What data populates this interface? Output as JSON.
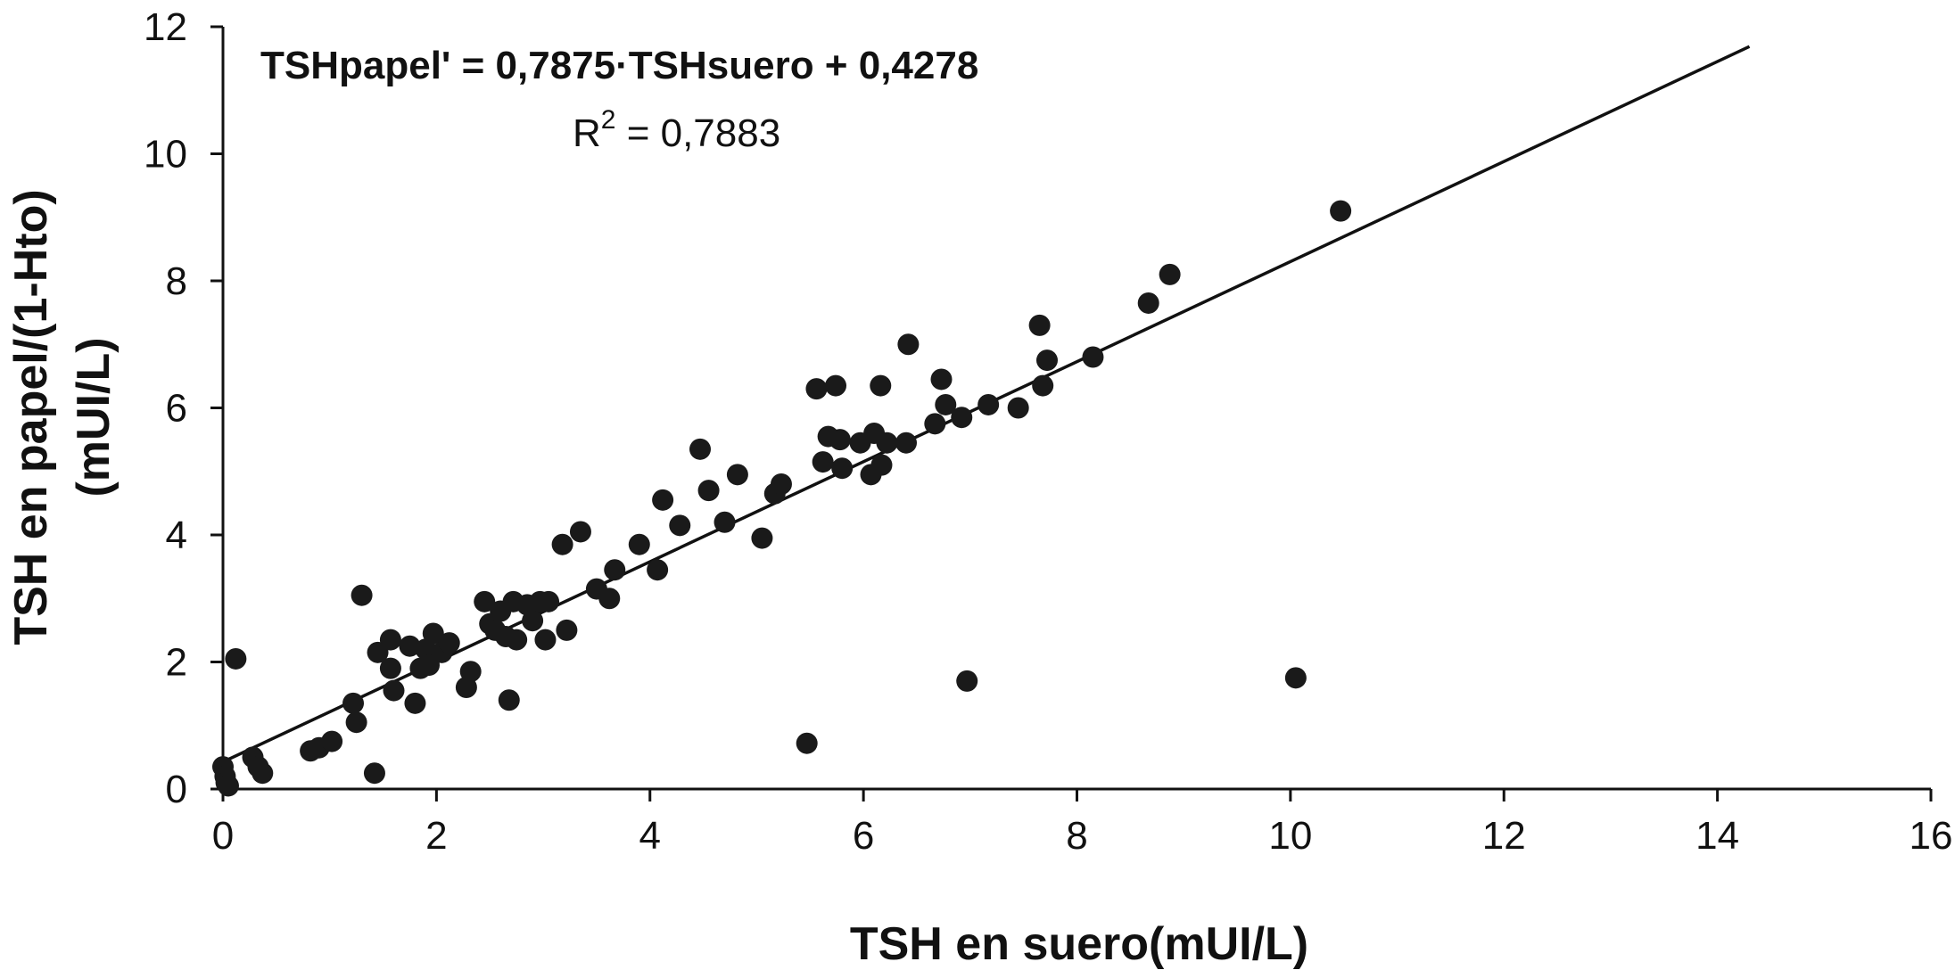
{
  "chart_data": {
    "type": "scatter",
    "xlabel": "TSH en suero(mUI/L)",
    "ylabel_lines": [
      "TSH en papel/(1-Hto)",
      "(mUI/L)"
    ],
    "xlim": [
      0,
      16
    ],
    "ylim": [
      0,
      12
    ],
    "x_ticks": [
      0,
      2,
      4,
      6,
      8,
      10,
      12,
      14,
      16
    ],
    "y_ticks": [
      0,
      2,
      4,
      6,
      8,
      10,
      12
    ],
    "x_tick_labels": [
      "0",
      "2",
      "4",
      "6",
      "8",
      "10",
      "12",
      "14",
      "16"
    ],
    "y_tick_labels": [
      "0",
      "2",
      "4",
      "6",
      "8",
      "10",
      "12"
    ],
    "grid": false,
    "legend": "none",
    "marker_color": "#1a1a1a",
    "line_color": "#111111",
    "annotations": {
      "equation": "TSHpapel' = 0,7875·TSHsuero + 0,4278",
      "r_squared_prefix": "R",
      "r_squared_sup": "2",
      "r_squared_value": " = 0,7883"
    },
    "trendline": {
      "slope": 0.7875,
      "intercept": 0.4278,
      "x_range": [
        0,
        14.3
      ]
    },
    "points": [
      [
        0.0,
        0.35
      ],
      [
        0.02,
        0.2
      ],
      [
        0.03,
        0.1
      ],
      [
        0.05,
        0.05
      ],
      [
        0.12,
        2.05
      ],
      [
        0.28,
        0.5
      ],
      [
        0.33,
        0.35
      ],
      [
        0.37,
        0.25
      ],
      [
        0.82,
        0.6
      ],
      [
        0.9,
        0.65
      ],
      [
        1.02,
        0.75
      ],
      [
        1.22,
        1.35
      ],
      [
        1.25,
        1.05
      ],
      [
        1.3,
        3.05
      ],
      [
        1.42,
        0.25
      ],
      [
        1.45,
        2.15
      ],
      [
        1.57,
        2.35
      ],
      [
        1.57,
        1.9
      ],
      [
        1.6,
        1.55
      ],
      [
        1.75,
        2.25
      ],
      [
        1.8,
        1.35
      ],
      [
        1.85,
        1.9
      ],
      [
        1.9,
        2.2
      ],
      [
        1.93,
        1.95
      ],
      [
        1.97,
        2.45
      ],
      [
        2.05,
        2.15
      ],
      [
        2.12,
        2.3
      ],
      [
        2.28,
        1.6
      ],
      [
        2.32,
        1.85
      ],
      [
        2.45,
        2.95
      ],
      [
        2.5,
        2.6
      ],
      [
        2.55,
        2.5
      ],
      [
        2.6,
        2.8
      ],
      [
        2.65,
        2.4
      ],
      [
        2.68,
        1.4
      ],
      [
        2.72,
        2.95
      ],
      [
        2.75,
        2.35
      ],
      [
        2.85,
        2.9
      ],
      [
        2.9,
        2.65
      ],
      [
        2.97,
        2.95
      ],
      [
        3.02,
        2.35
      ],
      [
        3.05,
        2.95
      ],
      [
        3.18,
        3.85
      ],
      [
        3.22,
        2.5
      ],
      [
        3.35,
        4.05
      ],
      [
        3.5,
        3.15
      ],
      [
        3.62,
        3.0
      ],
      [
        3.67,
        3.45
      ],
      [
        3.9,
        3.85
      ],
      [
        4.07,
        3.45
      ],
      [
        4.12,
        4.55
      ],
      [
        4.28,
        4.15
      ],
      [
        4.47,
        5.35
      ],
      [
        4.55,
        4.7
      ],
      [
        4.7,
        4.2
      ],
      [
        4.82,
        4.95
      ],
      [
        5.05,
        3.95
      ],
      [
        5.17,
        4.65
      ],
      [
        5.23,
        4.8
      ],
      [
        5.47,
        0.72
      ],
      [
        5.56,
        6.3
      ],
      [
        5.62,
        5.15
      ],
      [
        5.67,
        5.55
      ],
      [
        5.74,
        6.35
      ],
      [
        5.78,
        5.5
      ],
      [
        5.8,
        5.05
      ],
      [
        5.97,
        5.45
      ],
      [
        6.07,
        4.95
      ],
      [
        6.1,
        5.6
      ],
      [
        6.16,
        6.35
      ],
      [
        6.17,
        5.1
      ],
      [
        6.22,
        5.45
      ],
      [
        6.4,
        5.45
      ],
      [
        6.42,
        7.0
      ],
      [
        6.67,
        5.75
      ],
      [
        6.73,
        6.45
      ],
      [
        6.77,
        6.05
      ],
      [
        6.92,
        5.85
      ],
      [
        6.97,
        1.7
      ],
      [
        7.17,
        6.05
      ],
      [
        7.45,
        6.0
      ],
      [
        7.65,
        7.3
      ],
      [
        7.68,
        6.35
      ],
      [
        7.72,
        6.75
      ],
      [
        8.15,
        6.8
      ],
      [
        8.67,
        7.65
      ],
      [
        8.87,
        8.1
      ],
      [
        10.05,
        1.75
      ],
      [
        10.47,
        9.1
      ]
    ]
  }
}
